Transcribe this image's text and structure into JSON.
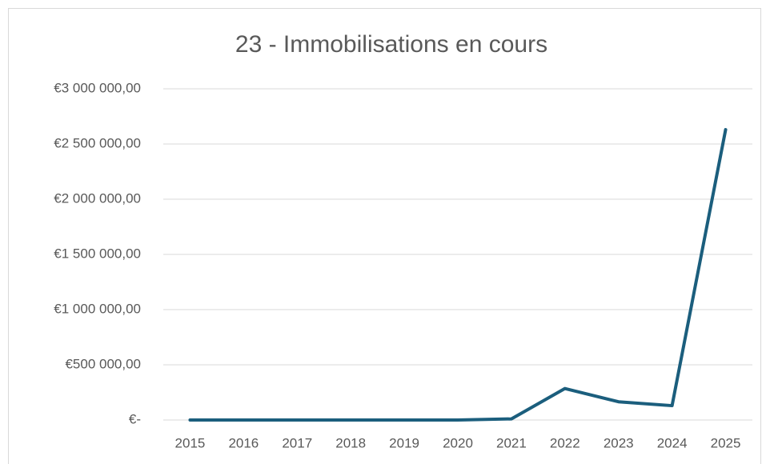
{
  "chart_data": {
    "type": "line",
    "title": "23 - Immobilisations en cours",
    "categories": [
      "2015",
      "2016",
      "2017",
      "2018",
      "2019",
      "2020",
      "2021",
      "2022",
      "2023",
      "2024",
      "2025"
    ],
    "series": [
      {
        "name": "23 - Immobilisations en cours",
        "color": "#1b5e7d",
        "values": [
          0,
          0,
          0,
          0,
          0,
          0,
          10000,
          285000,
          165000,
          130000,
          2630000
        ]
      }
    ],
    "ylim": [
      0,
      3000000
    ],
    "yticks": [
      {
        "value": 0,
        "label": "€-"
      },
      {
        "value": 500000,
        "label": "€500 000,00"
      },
      {
        "value": 1000000,
        "label": "€1 000 000,00"
      },
      {
        "value": 1500000,
        "label": "€1 500 000,00"
      },
      {
        "value": 2000000,
        "label": "€2 000 000,00"
      },
      {
        "value": 2500000,
        "label": "€2 500 000,00"
      },
      {
        "value": 3000000,
        "label": "€3 000 000,00"
      }
    ],
    "grid": true
  }
}
